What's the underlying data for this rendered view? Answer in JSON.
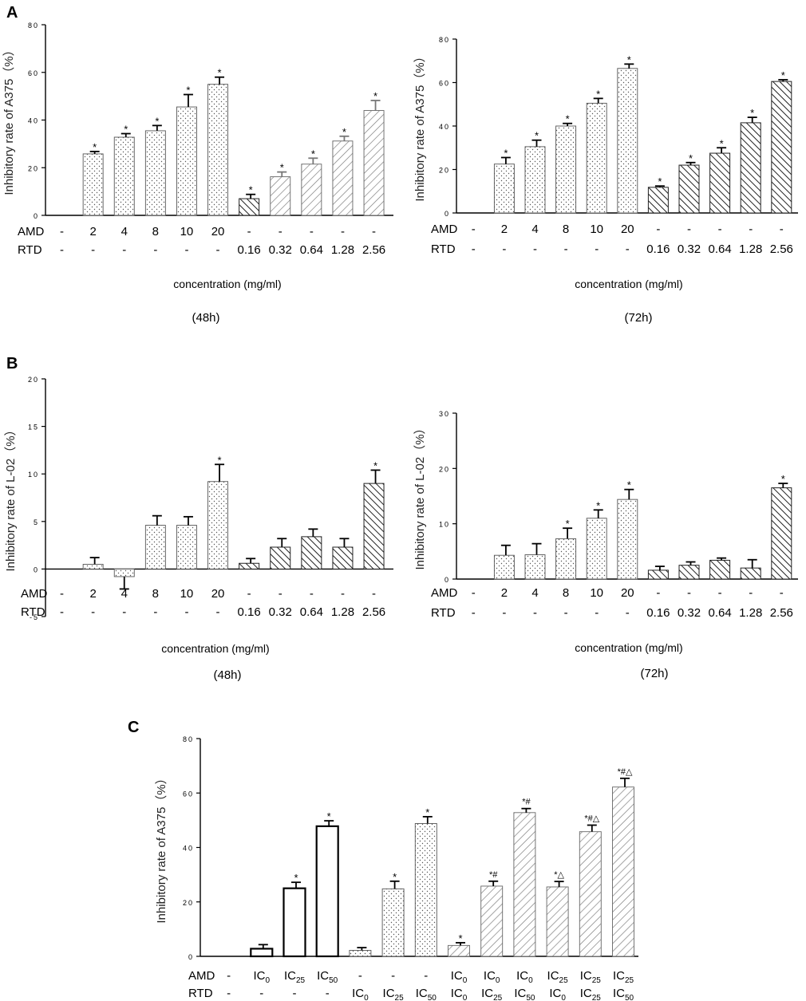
{
  "colors": {
    "ink": "#000000",
    "grey_ink": "#6e6e6e",
    "background": "#ffffff"
  },
  "panel_labels": {
    "A": "A",
    "B": "B",
    "C": "C"
  },
  "chart_data": [
    {
      "id": "A48",
      "type": "bar",
      "panel": "A",
      "time_label": "(48h)",
      "ylabel": "Inhibitory rate of A375（%）",
      "xlabel": "concentration (mg/ml)",
      "ylim": [
        0,
        80
      ],
      "yticks": [
        0,
        20,
        40,
        60,
        80
      ],
      "row_labels": [
        "AMD",
        "RTD"
      ],
      "amd": [
        "-",
        "2",
        "4",
        "8",
        "10",
        "20",
        "-",
        "-",
        "-",
        "-",
        "-"
      ],
      "rtd": [
        "-",
        "-",
        "-",
        "-",
        "-",
        "-",
        "0.16",
        "0.32",
        "0.64",
        "1.28",
        "2.56"
      ],
      "values": [
        0,
        25.8,
        32.8,
        35.5,
        45.5,
        55.0,
        7.0,
        16.2,
        21.5,
        31.2,
        44.0
      ],
      "errors": [
        0,
        1.0,
        1.5,
        2.2,
        5.2,
        3.0,
        1.8,
        2.0,
        2.5,
        2.0,
        4.2
      ],
      "stars": [
        "",
        "*",
        "*",
        "*",
        "*",
        "*",
        "*",
        "*",
        "*",
        "*",
        "*"
      ],
      "patterns": [
        "none",
        "dots",
        "dots",
        "dots",
        "dots",
        "dots",
        "back",
        "fwd",
        "fwd",
        "fwd",
        "fwd"
      ]
    },
    {
      "id": "A72",
      "type": "bar",
      "panel": "A",
      "time_label": "(72h)",
      "ylabel": "Inhibitory rate of A375（%）",
      "xlabel": "concentration (mg/ml)",
      "ylim": [
        0,
        80
      ],
      "yticks": [
        0,
        20,
        40,
        60,
        80
      ],
      "row_labels": [
        "AMD",
        "RTD"
      ],
      "amd": [
        "-",
        "2",
        "4",
        "8",
        "10",
        "20",
        "-",
        "-",
        "-",
        "-",
        "-"
      ],
      "rtd": [
        "-",
        "-",
        "-",
        "-",
        "-",
        "-",
        "0.16",
        "0.32",
        "0.64",
        "1.28",
        "2.56"
      ],
      "values": [
        0,
        22.5,
        30.5,
        40.0,
        50.5,
        66.5,
        11.8,
        22.0,
        27.5,
        41.5,
        60.5
      ],
      "errors": [
        0,
        3.0,
        3.0,
        1.2,
        2.2,
        2.0,
        0.6,
        1.2,
        2.5,
        2.5,
        0.8
      ],
      "stars": [
        "",
        "*",
        "*",
        "*",
        "*",
        "*",
        "*",
        "*",
        "*",
        "*",
        "*"
      ],
      "patterns": [
        "none",
        "dots",
        "dots",
        "dots",
        "dots",
        "dots",
        "back",
        "back",
        "back",
        "back",
        "back"
      ]
    },
    {
      "id": "B48",
      "type": "bar",
      "panel": "B",
      "time_label": "(48h)",
      "ylabel": "Inhibitory rate of L-02（%）",
      "xlabel": "concentration (mg/ml)",
      "ylim": [
        -5,
        20
      ],
      "yticks": [
        -5,
        0,
        5,
        10,
        15,
        20
      ],
      "row_labels": [
        "AMD",
        "RTD"
      ],
      "amd": [
        "-",
        "2",
        "4",
        "8",
        "10",
        "20",
        "-",
        "-",
        "-",
        "-",
        "-"
      ],
      "rtd": [
        "-",
        "-",
        "-",
        "-",
        "-",
        "-",
        "0.16",
        "0.32",
        "0.64",
        "1.28",
        "2.56"
      ],
      "values": [
        0,
        0.5,
        -0.8,
        4.6,
        4.6,
        9.2,
        0.6,
        2.3,
        3.4,
        2.3,
        9.0
      ],
      "errors": [
        0,
        0.7,
        1.3,
        1.0,
        0.9,
        1.8,
        0.5,
        0.9,
        0.8,
        0.9,
        1.4
      ],
      "stars": [
        "",
        "",
        "",
        "",
        "",
        "*",
        "",
        "",
        "",
        "",
        "*"
      ],
      "patterns": [
        "none",
        "dots",
        "dots",
        "dots",
        "dots",
        "dots",
        "back",
        "back",
        "back",
        "back",
        "back"
      ]
    },
    {
      "id": "B72",
      "type": "bar",
      "panel": "B",
      "time_label": "(72h)",
      "ylabel": "Inhibitory rate of L-02（%）",
      "xlabel": "concentration (mg/ml)",
      "ylim": [
        0,
        30
      ],
      "yticks": [
        0,
        10,
        20,
        30
      ],
      "row_labels": [
        "AMD",
        "RTD"
      ],
      "amd": [
        "-",
        "2",
        "4",
        "8",
        "10",
        "20",
        "-",
        "-",
        "-",
        "-",
        "-"
      ],
      "rtd": [
        "-",
        "-",
        "-",
        "-",
        "-",
        "-",
        "0.16",
        "0.32",
        "0.64",
        "1.28",
        "2.56"
      ],
      "values": [
        0,
        4.3,
        4.4,
        7.3,
        11.0,
        14.4,
        1.6,
        2.5,
        3.4,
        2.0,
        16.5
      ],
      "errors": [
        0,
        1.8,
        2.0,
        1.9,
        1.5,
        1.8,
        0.7,
        0.6,
        0.4,
        1.5,
        0.8
      ],
      "stars": [
        "",
        "",
        "",
        "*",
        "*",
        "*",
        "",
        "",
        "",
        "",
        "*"
      ],
      "patterns": [
        "none",
        "dots",
        "dots",
        "dots",
        "dots",
        "dots",
        "back",
        "back",
        "back",
        "back",
        "back"
      ]
    },
    {
      "id": "C",
      "type": "bar",
      "panel": "C",
      "ylabel": "Inhibitory rate of A375（%）",
      "ylim": [
        0,
        80
      ],
      "yticks": [
        0,
        20,
        40,
        60,
        80
      ],
      "row_labels": [
        "AMD",
        "RTD"
      ],
      "amd": [
        "-",
        "IC0",
        "IC25",
        "IC50",
        "-",
        "-",
        "-",
        "IC0",
        "IC0",
        "IC0",
        "IC25",
        "IC25",
        "IC25"
      ],
      "rtd": [
        "-",
        "-",
        "-",
        "-",
        "IC0",
        "IC25",
        "IC50",
        "IC0",
        "IC25",
        "IC50",
        "IC0",
        "IC25",
        "IC50"
      ],
      "values": [
        0,
        2.8,
        25.0,
        47.8,
        2.2,
        24.8,
        48.8,
        4.0,
        25.8,
        52.8,
        25.5,
        45.8,
        62.2
      ],
      "errors": [
        0,
        1.5,
        2.2,
        2.0,
        1.0,
        2.8,
        2.5,
        1.0,
        1.8,
        1.5,
        2.0,
        2.4,
        3.2
      ],
      "stars": [
        "",
        "",
        "*",
        "*",
        "",
        "*",
        "*",
        "*",
        "*#",
        "*#",
        "*△",
        "*#△",
        "*#△"
      ],
      "patterns": [
        "none",
        "empty",
        "empty",
        "empty",
        "dots",
        "dots",
        "dots",
        "fwd",
        "fwd",
        "fwd",
        "fwd",
        "fwd",
        "fwd"
      ]
    }
  ]
}
